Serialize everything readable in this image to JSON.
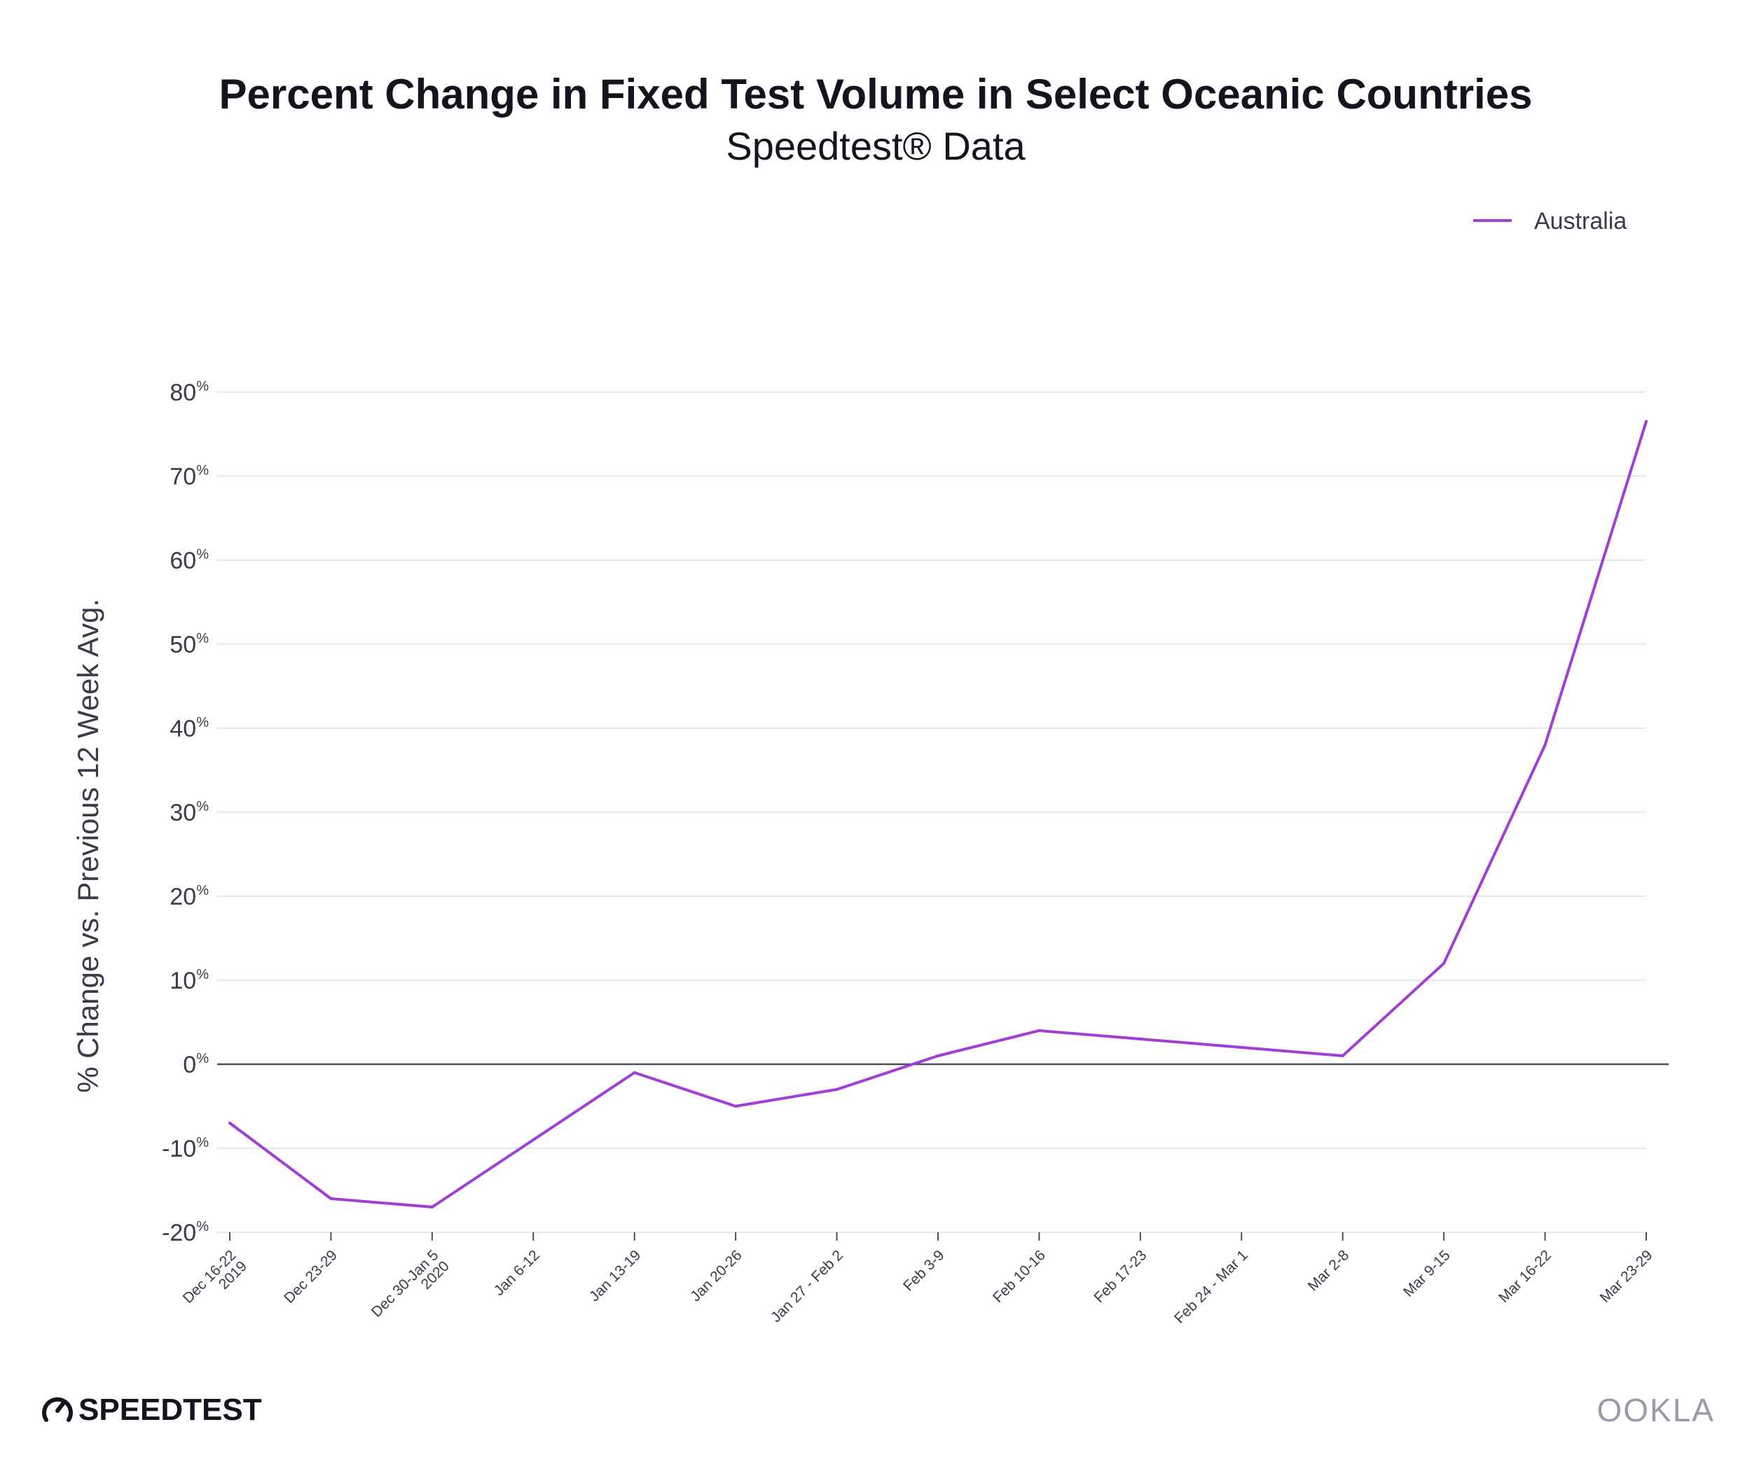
{
  "chart_data": {
    "type": "line",
    "title": "Percent Change in Fixed Test Volume in Select Oceanic Countries",
    "subtitle": "Speedtest® Data",
    "ylabel": "% Change vs. Previous 12 Week Avg.",
    "xlabel": "",
    "ylim": [
      -20,
      80
    ],
    "yticks": [
      -20,
      -10,
      0,
      10,
      20,
      30,
      40,
      50,
      60,
      70,
      80
    ],
    "ytick_labels": [
      "-20%",
      "-10%",
      "0%",
      "10%",
      "20%",
      "30%",
      "40%",
      "50%",
      "60%",
      "70%",
      "80%"
    ],
    "categories": [
      "Dec 16-22 2019",
      "Dec 23-29",
      "Dec 30-Jan 5 2020",
      "Jan 6-12",
      "Jan 13-19",
      "Jan 20-26",
      "Jan 27 - Feb 2",
      "Feb 3-9",
      "Feb 10-16",
      "Feb 17-23",
      "Feb 24 - Mar 1",
      "Mar 2-8",
      "Mar 9-15",
      "Mar 16-22",
      "Mar 23-29"
    ],
    "category_lines": [
      [
        "Dec 16-22",
        "2019"
      ],
      [
        "Dec 23-29"
      ],
      [
        "Dec 30-Jan 5",
        "2020"
      ],
      [
        "Jan 6-12"
      ],
      [
        "Jan 13-19"
      ],
      [
        "Jan 20-26"
      ],
      [
        "Jan 27 - Feb 2"
      ],
      [
        "Feb 3-9"
      ],
      [
        "Feb 10-16"
      ],
      [
        "Feb 17-23"
      ],
      [
        "Feb 24 - Mar 1"
      ],
      [
        "Mar 2-8"
      ],
      [
        "Mar 9-15"
      ],
      [
        "Mar 16-22"
      ],
      [
        "Mar 23-29"
      ]
    ],
    "series": [
      {
        "name": "Australia",
        "color": "#a23ed8",
        "values": [
          -7,
          -16,
          -17,
          -9,
          -1,
          -5,
          -3,
          1,
          4,
          3,
          2,
          1,
          12,
          38,
          76.5
        ]
      }
    ],
    "grid": true,
    "legend_position": "top-right",
    "zero_line_color": "#4a4a63"
  },
  "branding": {
    "speedtest": "SPEEDTEST",
    "ookla": "OOKLA"
  }
}
